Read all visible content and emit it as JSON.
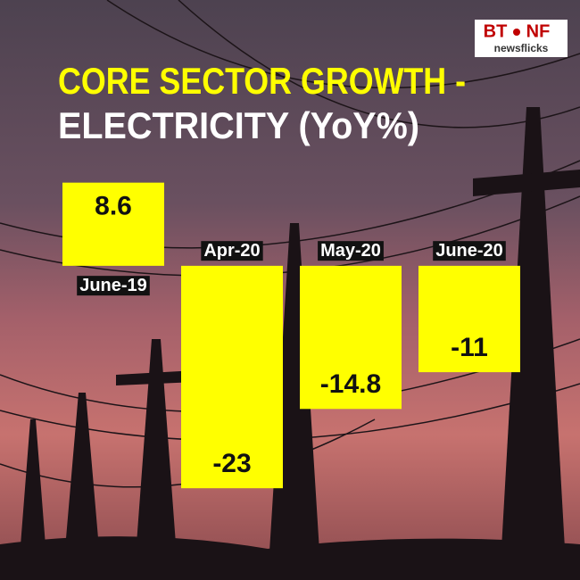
{
  "logo": {
    "left": "BT",
    "right": "NF",
    "tagline": "newsflicks"
  },
  "chart_data": {
    "type": "bar",
    "title": "CORE SECTOR GROWTH -",
    "subtitle": "ELECTRICITY (YoY%)",
    "categories": [
      "June-19",
      "Apr-20",
      "May-20",
      "June-20"
    ],
    "values": [
      8.6,
      -23,
      -14.8,
      -11
    ],
    "color": "#ffff00",
    "ylim": [
      -24,
      10
    ]
  }
}
